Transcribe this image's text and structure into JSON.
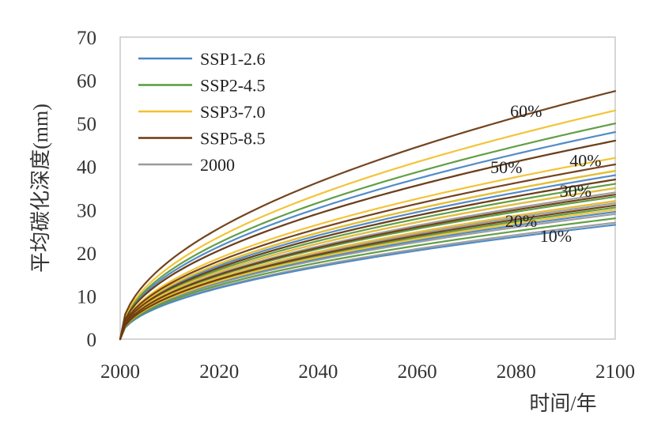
{
  "chart_data": {
    "type": "line",
    "title": "",
    "xlabel": "时间/年",
    "ylabel": "平均碳化深度(mm)",
    "xlim": [
      2000,
      2100
    ],
    "ylim": [
      0,
      70
    ],
    "x_ticks": [
      "2000",
      "2020",
      "2040",
      "2060",
      "2080",
      "2100"
    ],
    "y_ticks": [
      "0",
      "10",
      "20",
      "30",
      "40",
      "50",
      "60",
      "70"
    ],
    "grid": false,
    "legend_position": "top-left",
    "legend": [
      {
        "name": "SSP1-2.6",
        "color": "#4a86c5"
      },
      {
        "name": "SSP2-4.5",
        "color": "#5a9a3c"
      },
      {
        "name": "SSP3-7.0",
        "color": "#f2c12e"
      },
      {
        "name": "SSP5-8.5",
        "color": "#6b3a12"
      },
      {
        "name": "2000",
        "color": "#9a9a9a"
      }
    ],
    "annotations": [
      {
        "text": "60%",
        "x": 2082,
        "y": 51.5
      },
      {
        "text": "50%",
        "x": 2078,
        "y": 38.5
      },
      {
        "text": "40%",
        "x": 2094,
        "y": 40
      },
      {
        "text": "30%",
        "x": 2092,
        "y": 33
      },
      {
        "text": "20%",
        "x": 2081,
        "y": 26
      },
      {
        "text": "10%",
        "x": 2088,
        "y": 22.5
      }
    ],
    "series": [
      {
        "group": "60%",
        "scenario": "SSP1-2.6",
        "color": "#4a86c5",
        "end_value": 48
      },
      {
        "group": "60%",
        "scenario": "SSP2-4.5",
        "color": "#5a9a3c",
        "end_value": 50
      },
      {
        "group": "60%",
        "scenario": "SSP3-7.0",
        "color": "#f2c12e",
        "end_value": 53
      },
      {
        "group": "60%",
        "scenario": "SSP5-8.5",
        "color": "#6b3a12",
        "end_value": 57.5
      },
      {
        "group": "60%",
        "scenario": "2000",
        "color": "#9a9a9a",
        "end_value": 46
      },
      {
        "group": "50%",
        "scenario": "SSP1-2.6",
        "color": "#4a86c5",
        "end_value": 38
      },
      {
        "group": "50%",
        "scenario": "SSP2-4.5",
        "color": "#5a9a3c",
        "end_value": 39
      },
      {
        "group": "50%",
        "scenario": "SSP3-7.0",
        "color": "#f2c12e",
        "end_value": 42
      },
      {
        "group": "50%",
        "scenario": "SSP5-8.5",
        "color": "#6b3a12",
        "end_value": 46
      },
      {
        "group": "50%",
        "scenario": "2000",
        "color": "#9a9a9a",
        "end_value": 37
      },
      {
        "group": "40%",
        "scenario": "SSP1-2.6",
        "color": "#4a86c5",
        "end_value": 35
      },
      {
        "group": "40%",
        "scenario": "SSP2-4.5",
        "color": "#5a9a3c",
        "end_value": 36
      },
      {
        "group": "40%",
        "scenario": "SSP3-7.0",
        "color": "#f2c12e",
        "end_value": 39
      },
      {
        "group": "40%",
        "scenario": "SSP5-8.5",
        "color": "#6b3a12",
        "end_value": 40.5
      },
      {
        "group": "40%",
        "scenario": "2000",
        "color": "#9a9a9a",
        "end_value": 34
      },
      {
        "group": "30%",
        "scenario": "SSP1-2.6",
        "color": "#4a86c5",
        "end_value": 32
      },
      {
        "group": "30%",
        "scenario": "SSP2-4.5",
        "color": "#5a9a3c",
        "end_value": 33
      },
      {
        "group": "30%",
        "scenario": "SSP3-7.0",
        "color": "#f2c12e",
        "end_value": 35
      },
      {
        "group": "30%",
        "scenario": "SSP5-8.5",
        "color": "#6b3a12",
        "end_value": 37
      },
      {
        "group": "30%",
        "scenario": "2000",
        "color": "#9a9a9a",
        "end_value": 31.5
      },
      {
        "group": "20%",
        "scenario": "SSP1-2.6",
        "color": "#4a86c5",
        "end_value": 29.5
      },
      {
        "group": "20%",
        "scenario": "SSP2-4.5",
        "color": "#5a9a3c",
        "end_value": 30.5
      },
      {
        "group": "20%",
        "scenario": "SSP3-7.0",
        "color": "#f2c12e",
        "end_value": 32
      },
      {
        "group": "20%",
        "scenario": "SSP5-8.5",
        "color": "#6b3a12",
        "end_value": 33.5
      },
      {
        "group": "20%",
        "scenario": "2000",
        "color": "#9a9a9a",
        "end_value": 29
      },
      {
        "group": "10%",
        "scenario": "SSP1-2.6",
        "color": "#4a86c5",
        "end_value": 26.5
      },
      {
        "group": "10%",
        "scenario": "SSP2-4.5",
        "color": "#5a9a3c",
        "end_value": 28
      },
      {
        "group": "10%",
        "scenario": "SSP3-7.0",
        "color": "#f2c12e",
        "end_value": 30
      },
      {
        "group": "10%",
        "scenario": "SSP5-8.5",
        "color": "#6b3a12",
        "end_value": 31
      },
      {
        "group": "10%",
        "scenario": "2000",
        "color": "#9a9a9a",
        "end_value": 27
      }
    ]
  }
}
